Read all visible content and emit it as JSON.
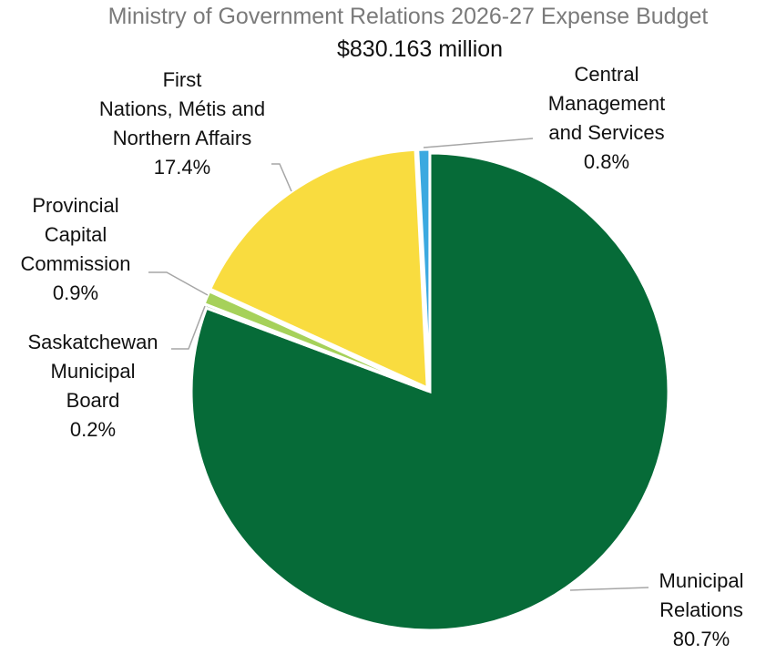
{
  "chart_data": {
    "type": "pie",
    "title": "Ministry of Government Relations 2026-27 Expense Budget",
    "subtitle": "$830.163 million",
    "slices": [
      {
        "lines": [
          "Municipal",
          "Relations"
        ],
        "pct_label": "80.7%",
        "value": 80.7,
        "color": "#066b38"
      },
      {
        "lines": [
          "Saskatchewan",
          "Municipal",
          "Board"
        ],
        "pct_label": "0.2%",
        "value": 0.2,
        "color": "#3a8c3f"
      },
      {
        "lines": [
          "Provincial",
          "Capital",
          "Commission"
        ],
        "pct_label": "0.9%",
        "value": 0.9,
        "color": "#a6d15a"
      },
      {
        "lines": [
          "First",
          "Nations, Métis and",
          "Northern Affairs"
        ],
        "pct_label": "17.4%",
        "value": 17.4,
        "color": "#f9dc3f"
      },
      {
        "lines": [
          "Central",
          "Management",
          "and Services"
        ],
        "pct_label": "0.8%",
        "value": 0.8,
        "color": "#3ba9e0"
      }
    ],
    "legend": "none",
    "leader_line_color": "#a6a6a6"
  }
}
